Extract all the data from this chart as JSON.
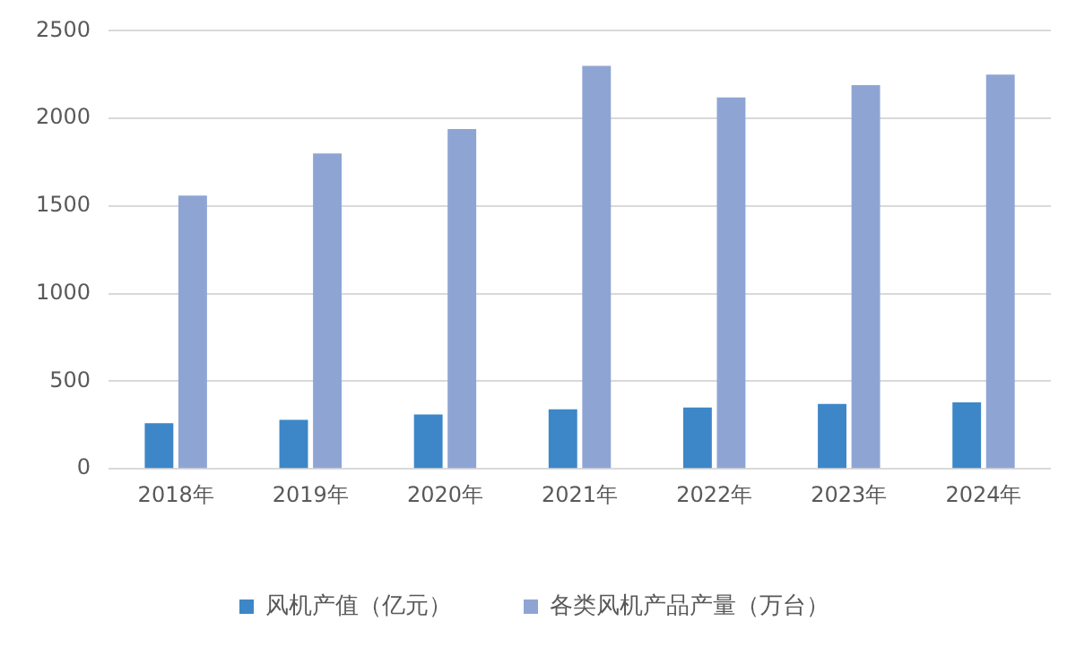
{
  "chart_data": {
    "type": "bar",
    "categories": [
      "2018年",
      "2019年",
      "2020年",
      "2021年",
      "2022年",
      "2023年",
      "2024年"
    ],
    "series": [
      {
        "name": "风机产值（亿元）",
        "color": "#3d87c8",
        "values": [
          260,
          280,
          310,
          340,
          350,
          370,
          380
        ]
      },
      {
        "name": "各类风机产品产量（万台）",
        "color": "#8ea5d4",
        "values": [
          1560,
          1800,
          1940,
          2300,
          2120,
          2190,
          2250
        ]
      }
    ],
    "ylim": [
      0,
      2500
    ],
    "yticks": [
      0,
      500,
      1000,
      1500,
      2000,
      2500
    ],
    "grid": "y",
    "legend": "bottom"
  }
}
